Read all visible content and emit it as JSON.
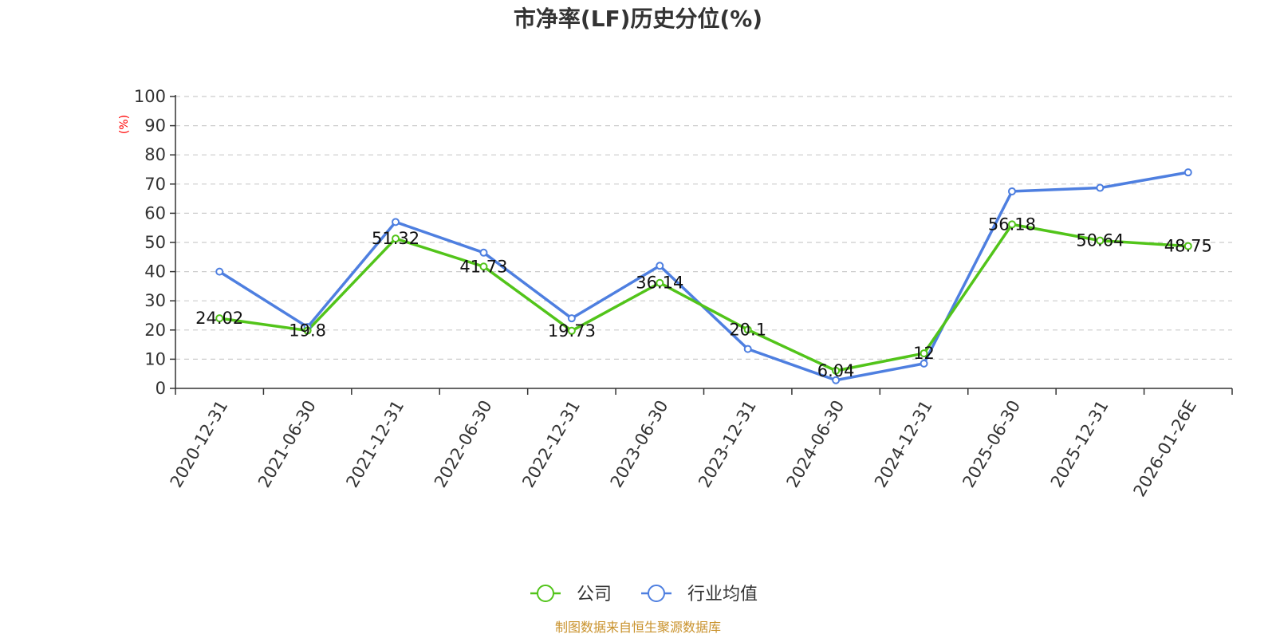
{
  "chart_data": {
    "type": "line",
    "title": "市净率(LF)历史分位(%)",
    "ylabel": "(%)",
    "xlabel": "",
    "categories": [
      "2020-12-31",
      "2021-06-30",
      "2021-12-31",
      "2022-06-30",
      "2022-12-31",
      "2023-06-30",
      "2023-12-31",
      "2024-06-30",
      "2024-12-31",
      "2025-06-30",
      "2025-12-31",
      "2026-01-26E"
    ],
    "ylim": [
      0,
      100
    ],
    "yticks": [
      0,
      10,
      20,
      30,
      40,
      50,
      60,
      70,
      80,
      90,
      100
    ],
    "grid": true,
    "legend_position": "bottom",
    "series": [
      {
        "name": "公司",
        "color": "#52c41a",
        "values": [
          24.02,
          19.8,
          51.32,
          41.73,
          19.73,
          36.14,
          20.1,
          6.04,
          12,
          56.18,
          50.64,
          48.75
        ],
        "labels": [
          "24.02",
          "19.8",
          "51.32",
          "41.73",
          "19.73",
          "36.14",
          "20.1",
          "6.04",
          "12",
          "56.18",
          "50.64",
          "48.75"
        ]
      },
      {
        "name": "行业均值",
        "color": "#4e7fe0",
        "values": [
          40,
          21,
          57,
          46.5,
          24,
          42,
          13.5,
          2.8,
          8.5,
          67.5,
          68.7,
          74
        ]
      }
    ]
  },
  "source": "制图数据来自恒生聚源数据库"
}
